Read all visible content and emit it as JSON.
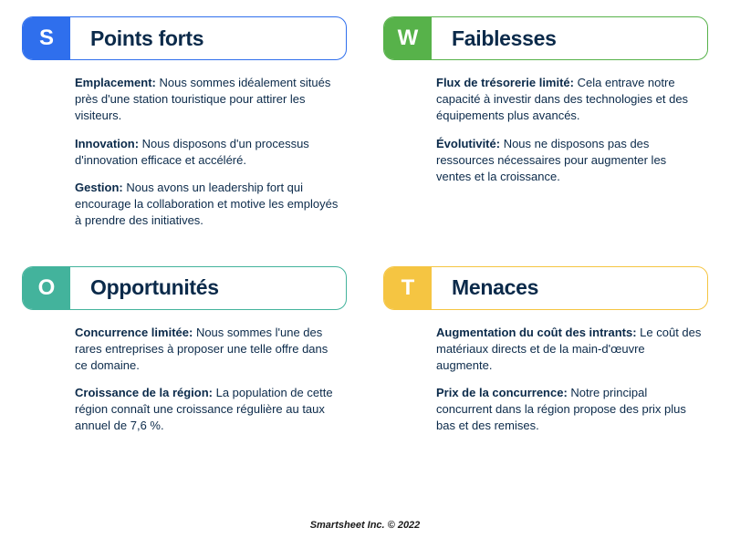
{
  "colors": {
    "text": "#0b2a4a",
    "bg": "#ffffff"
  },
  "quadrants": [
    {
      "letter": "S",
      "title": "Points forts",
      "accent": "#2f6fed",
      "items": [
        {
          "label": "Emplacement:",
          "text": " Nous sommes idéalement situés près d'une station touristique pour attirer les visiteurs."
        },
        {
          "label": "Innovation:",
          "text": " Nous disposons d'un processus d'innovation efficace et accéléré."
        },
        {
          "label": "Gestion:",
          "text": " Nous avons un leadership fort qui encourage la collaboration et motive les employés à prendre des initiatives."
        }
      ]
    },
    {
      "letter": "W",
      "title": "Faiblesses",
      "accent": "#57b24a",
      "items": [
        {
          "label": "Flux de trésorerie limité:",
          "text": " Cela entrave notre capacité à investir dans des technologies et des équipements plus avancés."
        },
        {
          "label": "Évolutivité:",
          "text": " Nous ne disposons pas des ressources nécessaires pour augmenter les ventes et la croissance."
        }
      ]
    },
    {
      "letter": "O",
      "title": "Opportunités",
      "accent": "#43b39c",
      "items": [
        {
          "label": "Concurrence limitée:",
          "text": " Nous sommes l'une des rares entreprises à proposer une telle offre dans ce domaine."
        },
        {
          "label": "Croissance de la région:",
          "text": " La population de cette région connaît une croissance régulière au taux annuel de 7,6 %."
        }
      ]
    },
    {
      "letter": "T",
      "title": "Menaces",
      "accent": "#f5c542",
      "items": [
        {
          "label": "Augmentation du coût des intrants:",
          "text": " Le coût des matériaux directs et de la main-d'œuvre augmente."
        },
        {
          "label": "Prix de la concurrence:",
          "text": " Notre principal concurrent dans la région propose des prix plus bas et des remises."
        }
      ]
    }
  ],
  "footer": "Smartsheet Inc. © 2022"
}
